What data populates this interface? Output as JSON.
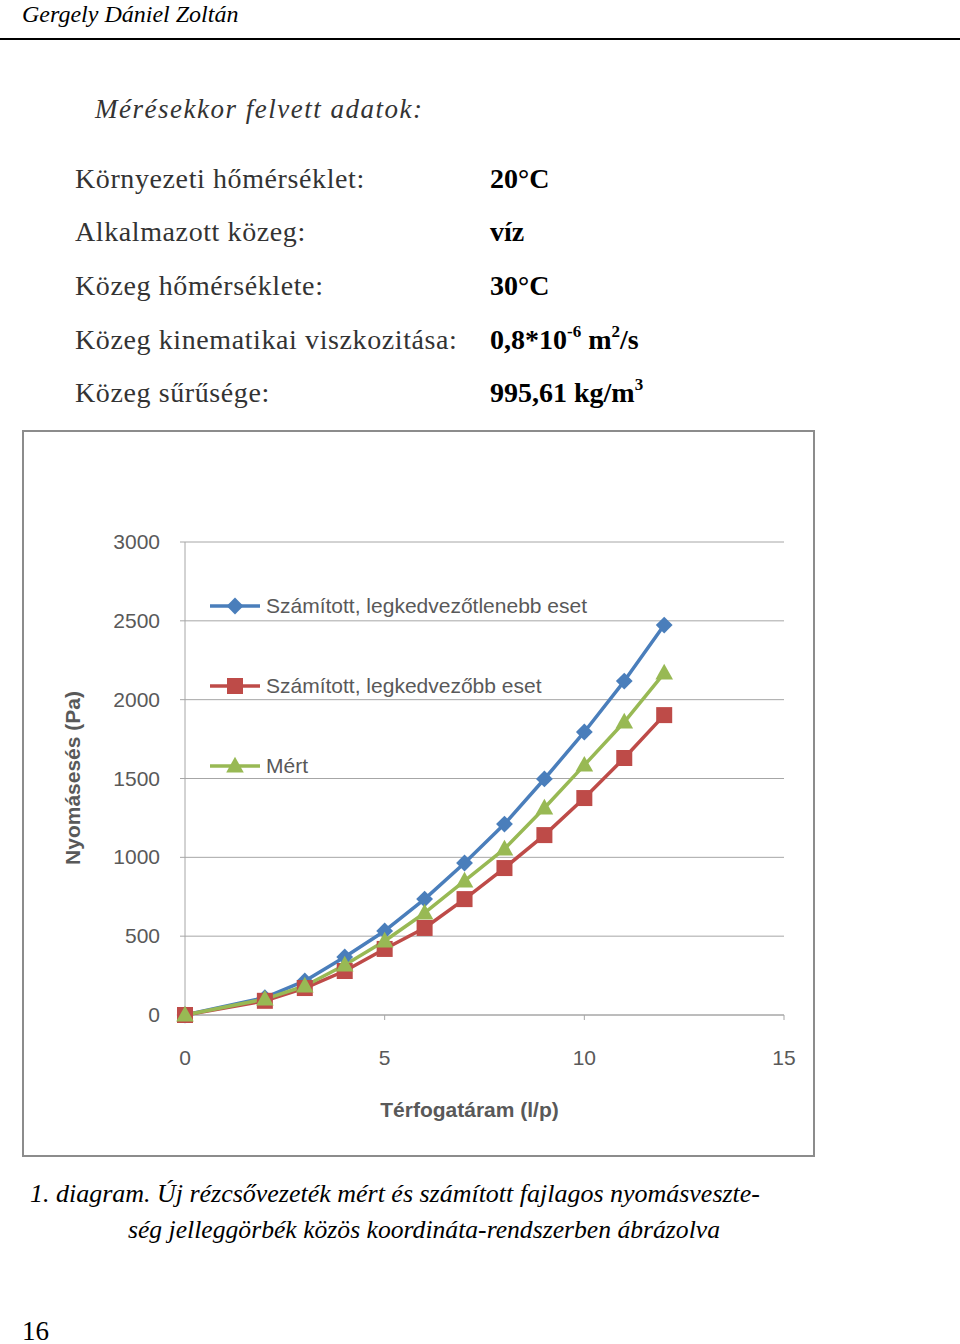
{
  "header": {
    "author": "Gergely Dániel Zoltán"
  },
  "section": {
    "title": "Mérésekkor felvett adatok:"
  },
  "parameters": [
    {
      "label": "Környezeti hőmérséklet:",
      "value": [
        {
          "text": "20°C"
        }
      ]
    },
    {
      "label": "Alkalmazott közeg:",
      "value": [
        {
          "text": "víz"
        }
      ]
    },
    {
      "label": "Közeg hőmérséklete:",
      "value": [
        {
          "text": "30°C"
        }
      ]
    },
    {
      "label": "Közeg kinematikai viszkozitása:",
      "value": [
        {
          "text": "0,8*10"
        },
        {
          "sup": "-6"
        },
        {
          "text": " m"
        },
        {
          "sup": "2"
        },
        {
          "text": "/s"
        }
      ]
    },
    {
      "label": "Közeg sűrűsége:",
      "value": [
        {
          "text": "995,61 kg/m"
        },
        {
          "sup": "3"
        }
      ]
    }
  ],
  "chart_data": {
    "type": "line",
    "x_label": "Térfogatáram (l/p)",
    "y_label": "Nyomásesés (Pa)",
    "x": [
      0,
      2,
      3,
      4,
      5,
      6,
      7,
      8,
      9,
      10,
      11,
      12
    ],
    "series": [
      {
        "name": "Számított, legkedvezőtlenebb eset",
        "color": "#4a7ebb",
        "marker": "diamond",
        "values": [
          0,
          110,
          216,
          368,
          533,
          735,
          964,
          1211,
          1497,
          1795,
          2118,
          2473
        ]
      },
      {
        "name": "Számított, legkedvezőbb eset",
        "color": "#be4b48",
        "marker": "square",
        "values": [
          0,
          90,
          171,
          279,
          419,
          552,
          735,
          932,
          1141,
          1376,
          1630,
          1902
        ]
      },
      {
        "name": "Mért",
        "color": "#98b954",
        "marker": "triangle",
        "values": [
          0,
          101,
          184,
          317,
          469,
          647,
          850,
          1053,
          1313,
          1585,
          1858,
          2169
        ]
      }
    ],
    "xlim": [
      0,
      15
    ],
    "xticks": [
      0,
      5,
      10,
      15
    ],
    "ylim": [
      0,
      3000
    ],
    "yticks": [
      0,
      500,
      1000,
      1500,
      2000,
      2500,
      3000
    ],
    "grid": true,
    "legend": "top-left"
  },
  "caption": [
    "1. diagram. Új rézcsővezeték mért és számított fajlagos nyomásveszte-",
    "ség jelleggörbék közös koordináta-rendszerben ábrázolva"
  ],
  "page_number": "16"
}
